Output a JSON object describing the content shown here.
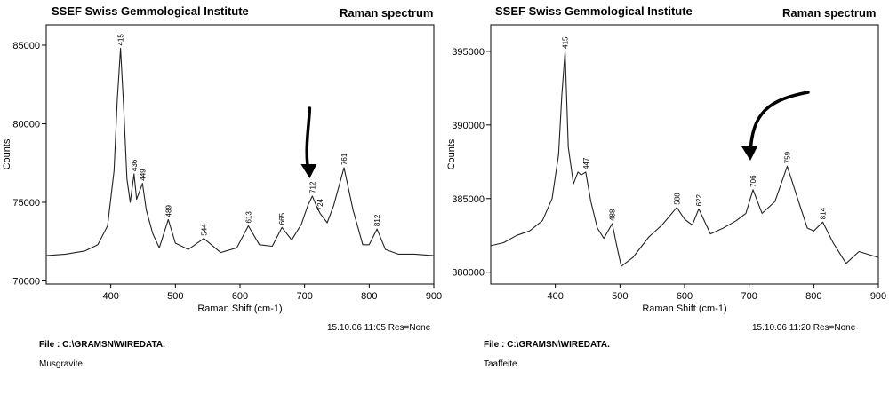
{
  "panels": [
    {
      "header": "SSEF Swiss Gemmological Institute",
      "title": "Raman spectrum",
      "timestamp": "15.10.06  11:05  Res=None",
      "file": "File : C:\\GRAMSN\\WIREDATA.",
      "sample": "Musgravite"
    },
    {
      "header": "SSEF Swiss Gemmological Institute",
      "title": "Raman spectrum",
      "timestamp": "15.10.06  11:20  Res=None",
      "file": "File : C:\\GRAMSN\\WIREDATA.",
      "sample": "Taaffeite"
    }
  ],
  "chart_data": [
    {
      "type": "line",
      "title": "Raman spectrum",
      "xlabel": "Raman Shift (cm-1)",
      "ylabel": "Counts",
      "xlim": [
        300,
        900
      ],
      "ylim": [
        69800,
        86300
      ],
      "x_ticks": [
        400,
        500,
        600,
        700,
        800,
        900
      ],
      "y_ticks": [
        70000,
        75000,
        80000,
        85000
      ],
      "grid": false,
      "line_color": "#222222",
      "series": [
        {
          "x": [
            300,
            330,
            360,
            380,
            395,
            405,
            410,
            415,
            420,
            425,
            430,
            436,
            440,
            449,
            455,
            465,
            475,
            489,
            500,
            520,
            544,
            570,
            595,
            613,
            630,
            650,
            665,
            680,
            695,
            705,
            712,
            718,
            724,
            735,
            745,
            761,
            775,
            790,
            800,
            812,
            825,
            845,
            870,
            900
          ],
          "y": [
            71600,
            71700,
            71900,
            72300,
            73500,
            77000,
            81500,
            84800,
            81000,
            76500,
            75000,
            76800,
            75200,
            76200,
            74500,
            73000,
            72100,
            73900,
            72400,
            72000,
            72700,
            71800,
            72100,
            73500,
            72300,
            72200,
            73400,
            72600,
            73600,
            74800,
            75400,
            74800,
            74300,
            73700,
            74800,
            77200,
            74500,
            72300,
            72300,
            73300,
            72000,
            71700,
            71700,
            71600
          ]
        }
      ],
      "peak_labels": [
        {
          "x": 415,
          "y": 84800,
          "label": "415"
        },
        {
          "x": 436,
          "y": 76800,
          "label": "436"
        },
        {
          "x": 449,
          "y": 76200,
          "label": "449"
        },
        {
          "x": 489,
          "y": 73900,
          "label": "489"
        },
        {
          "x": 544,
          "y": 72700,
          "label": "544"
        },
        {
          "x": 613,
          "y": 73500,
          "label": "613"
        },
        {
          "x": 665,
          "y": 73400,
          "label": "665"
        },
        {
          "x": 712,
          "y": 75400,
          "label": "712"
        },
        {
          "x": 724,
          "y": 74300,
          "label": "724"
        },
        {
          "x": 761,
          "y": 77200,
          "label": "761"
        },
        {
          "x": 812,
          "y": 73300,
          "label": "812"
        }
      ],
      "annotations": [
        {
          "kind": "hand-drawn arrow",
          "points_to_x": 712
        }
      ]
    },
    {
      "type": "line",
      "title": "Raman spectrum",
      "xlabel": "Raman Shift (cm-1)",
      "ylabel": "Counts",
      "xlim": [
        300,
        900
      ],
      "ylim": [
        379200,
        396800
      ],
      "x_ticks": [
        400,
        500,
        600,
        700,
        800,
        900
      ],
      "y_ticks": [
        380000,
        385000,
        390000,
        395000
      ],
      "grid": false,
      "line_color": "#222222",
      "series": [
        {
          "x": [
            300,
            320,
            340,
            360,
            380,
            395,
            405,
            410,
            415,
            420,
            428,
            435,
            440,
            447,
            455,
            465,
            475,
            488,
            495,
            502,
            520,
            545,
            565,
            588,
            600,
            612,
            622,
            640,
            660,
            680,
            695,
            706,
            720,
            740,
            759,
            775,
            790,
            800,
            814,
            830,
            850,
            870,
            900
          ],
          "y": [
            381800,
            382000,
            382500,
            382800,
            383500,
            385000,
            388000,
            392000,
            395000,
            388500,
            386000,
            386800,
            386600,
            386800,
            384800,
            383000,
            382300,
            383300,
            381800,
            380400,
            381000,
            382400,
            383200,
            384400,
            383600,
            383200,
            384300,
            382600,
            383000,
            383500,
            384000,
            385600,
            384000,
            384800,
            387200,
            385000,
            383000,
            382800,
            383400,
            382000,
            380600,
            381400,
            381000
          ]
        }
      ],
      "peak_labels": [
        {
          "x": 415,
          "y": 395000,
          "label": "415"
        },
        {
          "x": 447,
          "y": 386800,
          "label": "447"
        },
        {
          "x": 488,
          "y": 383300,
          "label": "488"
        },
        {
          "x": 588,
          "y": 384400,
          "label": "588"
        },
        {
          "x": 622,
          "y": 384300,
          "label": "622"
        },
        {
          "x": 706,
          "y": 385600,
          "label": "706"
        },
        {
          "x": 759,
          "y": 387200,
          "label": "759"
        },
        {
          "x": 814,
          "y": 383400,
          "label": "814"
        }
      ],
      "annotations": [
        {
          "kind": "hand-drawn arrow",
          "points_to_x": 706
        }
      ]
    }
  ]
}
